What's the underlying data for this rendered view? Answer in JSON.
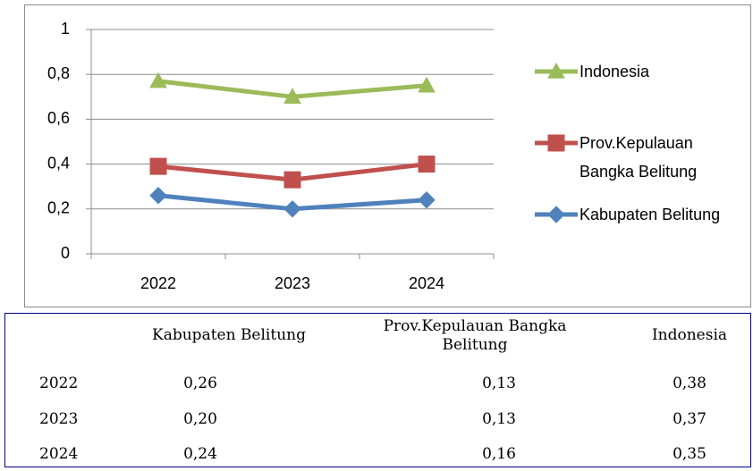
{
  "chart_data": {
    "type": "line",
    "categories": [
      "2022",
      "2023",
      "2024"
    ],
    "series": [
      {
        "name": "Indonesia",
        "color": "#9bbb59",
        "marker": "triangle",
        "values": [
          0.77,
          0.7,
          0.75
        ]
      },
      {
        "name": "Prov.Kepulauan Bangka Belitung",
        "color": "#c0504d",
        "marker": "square",
        "values": [
          0.39,
          0.33,
          0.4
        ]
      },
      {
        "name": "Kabupaten Belitung",
        "color": "#4f81bd",
        "marker": "diamond",
        "values": [
          0.26,
          0.2,
          0.24
        ]
      }
    ],
    "ylim": [
      0,
      1
    ],
    "yticks": [
      0,
      {
        "value": 0.2,
        "label": "0,2"
      },
      {
        "value": 0.4,
        "label": "0,4"
      },
      {
        "value": 0.6,
        "label": "0,6"
      },
      {
        "value": 0.8,
        "label": "0,8"
      },
      1
    ],
    "grid": true,
    "legend": "right"
  },
  "table": {
    "columns": [
      "Kabupaten Belitung",
      "Prov.Kepulauan Bangka Belitung",
      "Indonesia"
    ],
    "rows": [
      {
        "label": "2022",
        "cells": [
          "0,26",
          "0,13",
          "0,38"
        ]
      },
      {
        "label": "2023",
        "cells": [
          "0,20",
          "0,13",
          "0,37"
        ]
      },
      {
        "label": "2024",
        "cells": [
          "0,24",
          "0,16",
          "0,35"
        ]
      }
    ]
  }
}
